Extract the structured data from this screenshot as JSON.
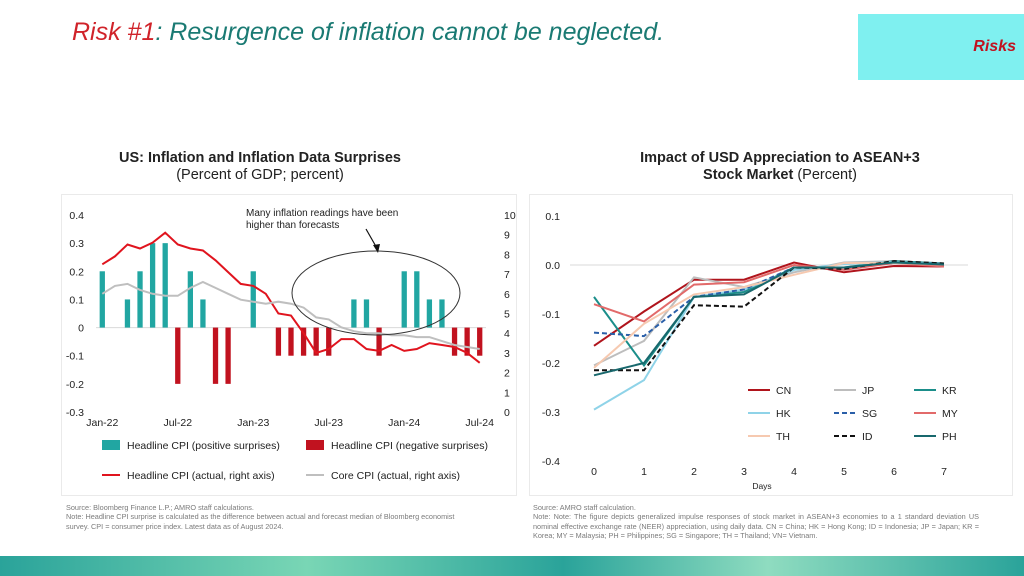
{
  "slide": {
    "title_highlight": "Risk #1",
    "title_rest": ": Resurgence of inflation cannot be neglected.",
    "tag": "Risks"
  },
  "colors": {
    "teal": "#21a6a2",
    "red": "#c1121f",
    "gray": "#bfbfbf",
    "title_teal": "#1a7a73"
  },
  "chart_data": [
    {
      "type": "bar",
      "title": "US: Inflation and Inflation Data Surprises",
      "subtitle": "(Percent of GDP; percent)",
      "x_ticks": [
        "Jan-22",
        "Jul-22",
        "Jan-23",
        "Jul-23",
        "Jan-24",
        "Jul-24"
      ],
      "months": [
        "Jan-22",
        "Feb-22",
        "Mar-22",
        "Apr-22",
        "May-22",
        "Jun-22",
        "Jul-22",
        "Aug-22",
        "Sep-22",
        "Oct-22",
        "Nov-22",
        "Dec-22",
        "Jan-23",
        "Feb-23",
        "Mar-23",
        "Apr-23",
        "May-23",
        "Jun-23",
        "Jul-23",
        "Aug-23",
        "Sep-23",
        "Oct-23",
        "Nov-23",
        "Dec-23",
        "Jan-24",
        "Feb-24",
        "Mar-24",
        "Apr-24",
        "May-24",
        "Jun-24",
        "Jul-24"
      ],
      "y_left": {
        "min": -0.3,
        "max": 0.4,
        "ticks": [
          "0.4",
          "0.3",
          "0.2",
          "0.1",
          "0",
          "-0.1",
          "-0.2",
          "-0.3"
        ]
      },
      "y_right": {
        "min": 0,
        "max": 10,
        "ticks": [
          "10",
          "9",
          "8",
          "7",
          "6",
          "5",
          "4",
          "3",
          "2",
          "1",
          "0"
        ]
      },
      "series": [
        {
          "name": "Headline CPI (positive surprises)",
          "kind": "bar",
          "axis": "left",
          "values": [
            0.2,
            0,
            0.1,
            0.2,
            0.3,
            0.3,
            0,
            0.2,
            0.1,
            0,
            0,
            0,
            0.2,
            0,
            0,
            0,
            0,
            0,
            0,
            0,
            0.1,
            0.1,
            0,
            0,
            0.2,
            0.2,
            0.1,
            0.1,
            0,
            0,
            0
          ]
        },
        {
          "name": "Headline CPI (negative surprises)",
          "kind": "bar",
          "axis": "left",
          "values": [
            0,
            0,
            0,
            0,
            0,
            0,
            -0.2,
            0,
            0,
            -0.2,
            -0.2,
            0,
            0,
            0,
            -0.1,
            -0.1,
            -0.1,
            -0.1,
            -0.1,
            0,
            0,
            0,
            -0.1,
            0,
            0,
            0,
            0,
            0,
            -0.1,
            -0.1,
            -0.1
          ]
        },
        {
          "name": "Headline CPI (actual, right axis)",
          "kind": "line",
          "axis": "right",
          "values": [
            7.5,
            7.9,
            8.5,
            8.3,
            8.6,
            9.1,
            8.5,
            8.3,
            8.2,
            7.7,
            7.1,
            6.5,
            6.4,
            6.0,
            5.0,
            4.9,
            4.0,
            3.0,
            3.2,
            3.7,
            3.7,
            3.2,
            3.1,
            3.4,
            3.1,
            3.2,
            3.5,
            3.4,
            3.3,
            3.0,
            2.5
          ]
        },
        {
          "name": "Core CPI (actual, right axis)",
          "kind": "line",
          "axis": "right",
          "values": [
            6.0,
            6.4,
            6.5,
            6.2,
            6.0,
            5.9,
            5.9,
            6.3,
            6.6,
            6.3,
            6.0,
            5.7,
            5.6,
            5.5,
            5.6,
            5.5,
            5.3,
            4.8,
            4.7,
            4.3,
            4.1,
            4.0,
            4.0,
            3.9,
            3.9,
            3.8,
            3.8,
            3.6,
            3.4,
            3.3,
            3.2
          ]
        }
      ],
      "annotation": "Many inflation readings have been higher than forecasts",
      "source": "Source: Bloomberg Finance L.P.; AMRO staff calculations.",
      "note": "Note: Headline CPI surprise is calculated as the difference between actual and forecast median of Bloomberg economist survey. CPI = consumer price index. Latest data as of August 2024."
    },
    {
      "type": "line",
      "title_bold_1": "Impact of USD Appreciation to ASEAN+3",
      "title_bold_2": "Stock Market",
      "title_unit": "(Percent)",
      "x": [
        0,
        1,
        2,
        3,
        4,
        5,
        6,
        7
      ],
      "xlabel": "Days",
      "ylim": [
        -0.4,
        0.1
      ],
      "y_ticks": [
        "0.1",
        "0.0",
        "-0.1",
        "-0.2",
        "-0.3",
        "-0.4"
      ],
      "series": [
        {
          "name": "CN",
          "color": "#b0141c",
          "dash": false,
          "values": [
            -0.165,
            -0.095,
            -0.03,
            -0.03,
            0.005,
            -0.015,
            -0.002,
            -0.003
          ]
        },
        {
          "name": "JP",
          "color": "#bdbdbd",
          "dash": false,
          "values": [
            -0.205,
            -0.155,
            -0.025,
            -0.045,
            -0.015,
            0.005,
            0.008,
            0.003
          ]
        },
        {
          "name": "KR",
          "color": "#1b8e8a",
          "dash": false,
          "values": [
            -0.065,
            -0.205,
            -0.065,
            -0.055,
            -0.005,
            -0.005,
            0.008,
            0.003
          ]
        },
        {
          "name": "HK",
          "color": "#8fd3e8",
          "dash": false,
          "values": [
            -0.295,
            -0.235,
            -0.065,
            -0.05,
            -0.01,
            0.002,
            0.006,
            0.002
          ]
        },
        {
          "name": "SG",
          "color": "#2a5fa8",
          "dash": true,
          "values": [
            -0.138,
            -0.145,
            -0.065,
            -0.05,
            -0.005,
            -0.005,
            0.004,
            0.002
          ]
        },
        {
          "name": "MY",
          "color": "#e26a6a",
          "dash": false,
          "values": [
            -0.08,
            -0.115,
            -0.04,
            -0.035,
            0.0,
            -0.01,
            0.004,
            -0.003
          ]
        },
        {
          "name": "TH",
          "color": "#f6c9b0",
          "dash": false,
          "values": [
            -0.21,
            -0.12,
            -0.06,
            -0.045,
            -0.02,
            0.004,
            0.004,
            0.001
          ]
        },
        {
          "name": "ID",
          "color": "#111111",
          "dash": true,
          "values": [
            -0.215,
            -0.215,
            -0.082,
            -0.085,
            -0.005,
            -0.008,
            0.008,
            0.003
          ]
        },
        {
          "name": "PH",
          "color": "#18686d",
          "dash": false,
          "values": [
            -0.225,
            -0.2,
            -0.065,
            -0.06,
            -0.005,
            -0.005,
            0.005,
            0.001
          ]
        }
      ],
      "source": "Source: AMRO staff calculation.",
      "note": "Note: Note: The figure depicts generalized impulse responses of stock market in ASEAN+3 economies to a 1 standard deviation US nominal effective exchange rate (NEER) appreciation, using daily data. CN = China; HK = Hong Kong; ID = Indonesia; JP = Japan; KR = Korea; MY = Malaysia; PH = Philippines; SG = Singapore; TH = Thailand; VN= Vietnam."
    }
  ]
}
